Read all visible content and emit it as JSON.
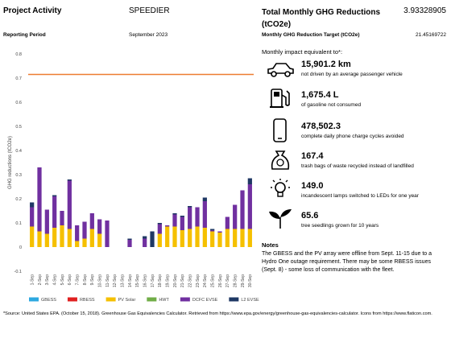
{
  "header": {
    "project_label": "Project Activity",
    "project": "SPEEDIER",
    "period_label": "Reporting Period",
    "period": "September 2023",
    "total_label": "Total Monthly GHG Reductions (tCO2e)",
    "total": "3.93328905",
    "target_label": "Monthly GHG Reduction Target (tCO2e)",
    "target": "21.45169722"
  },
  "chart_data": {
    "type": "bar",
    "stacked": true,
    "y_label": "GHG reductions (tCO2e)",
    "categories": [
      "1-Sep",
      "2-Sep",
      "3-Sep",
      "4-Sep",
      "5-Sep",
      "6-Sep",
      "7-Sep",
      "8-Sep",
      "9-Sep",
      "10-Sep",
      "11-Sep",
      "12-Sep",
      "13-Sep",
      "14-Sep",
      "15-Sep",
      "16-Sep",
      "17-Sep",
      "18-Sep",
      "19-Sep",
      "20-Sep",
      "21-Sep",
      "22-Sep",
      "23-Sep",
      "24-Sep",
      "25-Sep",
      "26-Sep",
      "27-Sep",
      "28-Sep",
      "29-Sep",
      "30-Sep"
    ],
    "series": [
      {
        "name": "GBESS",
        "color": "#2ea8e0",
        "values": [
          0,
          0,
          0,
          0,
          0,
          0,
          0,
          0,
          0,
          0,
          0,
          0,
          0,
          0,
          0,
          0,
          0,
          0,
          0,
          0,
          0,
          0,
          0,
          0,
          0,
          0,
          0,
          0,
          0,
          0
        ]
      },
      {
        "name": "RBESS",
        "color": "#e02020",
        "values": [
          0,
          0,
          0,
          0,
          0,
          0,
          0,
          0,
          0,
          0,
          0,
          0,
          0,
          0,
          0,
          0,
          0,
          0,
          0,
          0,
          0,
          0,
          0,
          0,
          0,
          0,
          0,
          0,
          0,
          0
        ]
      },
      {
        "name": "PV Solar",
        "color": "#f5c000",
        "values": [
          0.085,
          0.065,
          0.055,
          0.08,
          0.09,
          0.075,
          0.025,
          0.035,
          0.075,
          0.055,
          0,
          0,
          0,
          0,
          0,
          0,
          0,
          0.055,
          0.085,
          0.085,
          0.07,
          0.075,
          0.085,
          0.08,
          0.065,
          0.06,
          0.075,
          0.075,
          0.075,
          0.075
        ]
      },
      {
        "name": "HWT",
        "color": "#70ad47",
        "values": [
          0,
          0,
          0,
          0,
          0,
          0,
          0,
          0,
          0,
          0,
          0,
          0,
          0,
          0,
          0,
          0,
          0,
          0,
          0,
          0,
          0,
          0,
          0,
          0,
          0,
          0,
          0,
          0,
          0,
          0
        ]
      },
      {
        "name": "DCFC EVSE",
        "color": "#7030a0",
        "values": [
          0.08,
          0.265,
          0.1,
          0.13,
          0.06,
          0.2,
          0.065,
          0.07,
          0.065,
          0.06,
          0.11,
          0,
          0,
          0.03,
          0,
          0.035,
          0,
          0.04,
          0.005,
          0.05,
          0.055,
          0.09,
          0.08,
          0.11,
          0.005,
          0.005,
          0.05,
          0.1,
          0.16,
          0.185
        ]
      },
      {
        "name": "L2 EVSE",
        "color": "#1f3864",
        "values": [
          0.02,
          0,
          0,
          0.005,
          0,
          0.005,
          0,
          0,
          0,
          0,
          0,
          0,
          0,
          0.005,
          0,
          0.01,
          0.065,
          0.005,
          0,
          0.005,
          0.005,
          0.005,
          0,
          0.015,
          0.005,
          0,
          0,
          0,
          0,
          0.025
        ]
      }
    ],
    "target": {
      "name": "Target",
      "color": "#ed7d31",
      "value": 0.715
    },
    "ylim": [
      -0.1,
      0.8
    ],
    "yticks": [
      -0.1,
      0,
      0.1,
      0.2,
      0.3,
      0.4,
      0.5,
      0.6,
      0.7,
      0.8
    ],
    "grid": false,
    "legend": "bottom"
  },
  "equivalents": {
    "title": "Monthly impact equivalent to*:",
    "items": [
      {
        "value": "15,901.2 km",
        "text": "not driven by an average passenger vehicle"
      },
      {
        "value": "1,675.4 L",
        "text": "of gasoline not consumed"
      },
      {
        "value": "478,502.3",
        "text": "complete daily phone charge cycles avoided"
      },
      {
        "value": "167.4",
        "text": "trash bags of waste recycled instead of landfilled"
      },
      {
        "value": "149.0",
        "text": "incandescent lamps switched to LEDs for one year"
      },
      {
        "value": "65.6",
        "text": "tree seedlings grown for 10 years"
      }
    ]
  },
  "notes": {
    "title": "Notes",
    "text": "The GBESS and the PV array were offline from Sept. 11-15 due to a Hydro One outage requirement. There may be some RBESS issues (Sept. 8) - some loss of communication with the fleet."
  },
  "footer": "*Source: United States EPA. (October 15, 2018). Greenhouse Gas Equivalencies Calculator. Retrieved from https://www.epa.gov/energy/greenhouse-gas-equivalencies-calculator. Icons from https://www.flaticon.com."
}
